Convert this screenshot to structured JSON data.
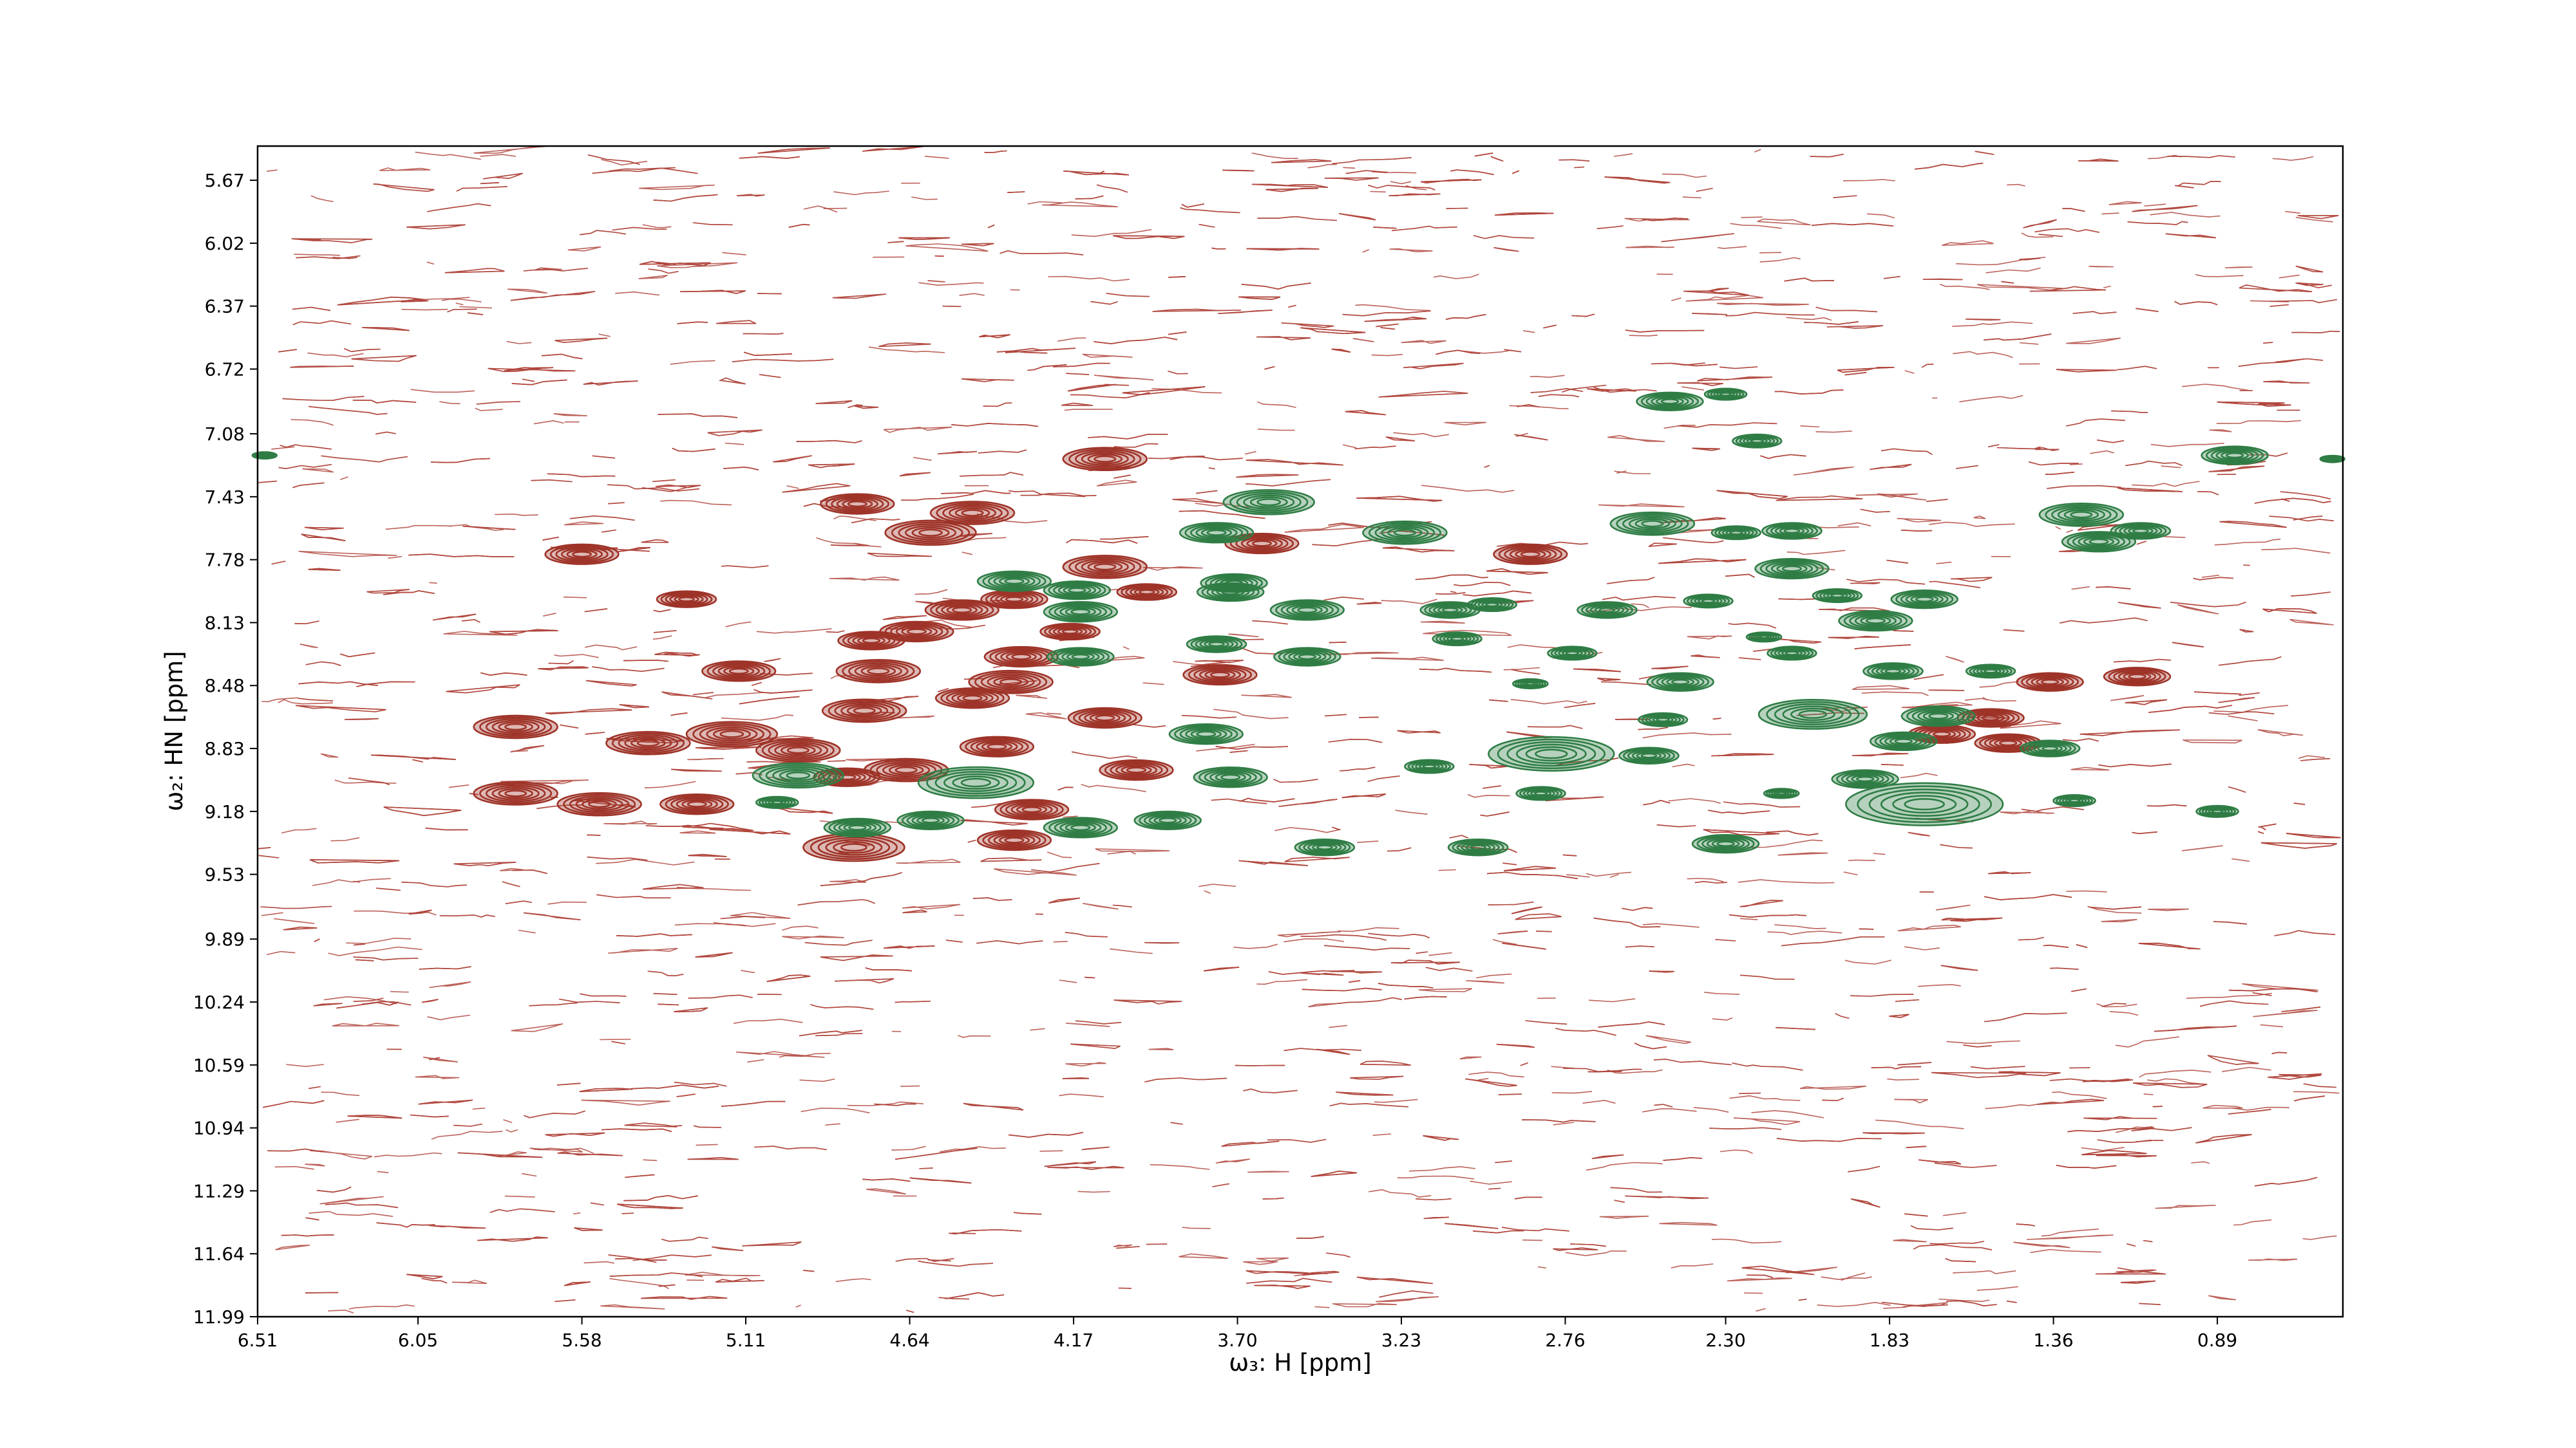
{
  "chart_data": {
    "type": "contour",
    "xlabel": "ω₃: H [ppm]",
    "ylabel": "ω₂: HN [ppm]",
    "xlim": [
      6.51,
      0.53
    ],
    "ylim": [
      5.48,
      11.99
    ],
    "xticks": [
      6.51,
      6.05,
      5.58,
      5.11,
      4.64,
      4.17,
      {
        "value": 3.7,
        "label": "3.70"
      },
      3.23,
      2.76,
      {
        "value": 2.3,
        "label": "2.30"
      },
      1.83,
      1.36,
      0.89
    ],
    "yticks": [
      5.67,
      6.02,
      6.37,
      6.72,
      7.08,
      7.43,
      7.78,
      8.13,
      8.48,
      8.83,
      9.18,
      9.53,
      9.89,
      10.24,
      10.59,
      10.94,
      11.29,
      11.64,
      11.99
    ],
    "noise_color": "#b0473d",
    "series": [
      {
        "color": "#9e3328",
        "x": [
          4.08,
          4.79,
          4.46,
          4.58,
          5.58,
          3.63,
          2.86,
          5.28,
          4.08,
          3.96,
          4.49,
          4.34,
          4.62,
          4.75,
          4.18,
          4.32,
          4.73,
          5.13,
          3.75,
          4.35,
          4.46,
          4.77,
          4.08,
          5.77,
          5.15,
          5.39,
          4.39,
          4.96,
          4.65,
          4.82,
          3.99,
          5.77,
          5.53,
          5.25,
          4.29,
          4.34,
          4.8,
          1.37,
          1.12,
          1.54,
          1.49,
          1.68
        ],
        "y": [
          7.22,
          7.47,
          7.52,
          7.63,
          7.75,
          7.69,
          7.75,
          8.0,
          7.82,
          7.96,
          8.06,
          8.0,
          8.18,
          8.23,
          8.18,
          8.32,
          8.4,
          8.4,
          8.42,
          8.46,
          8.55,
          8.62,
          8.66,
          8.71,
          8.75,
          8.8,
          8.82,
          8.84,
          8.95,
          8.99,
          8.95,
          9.08,
          9.14,
          9.14,
          9.17,
          9.34,
          9.38,
          8.46,
          8.43,
          8.66,
          8.8,
          8.75
        ],
        "sizes": [
          0.24,
          0.21,
          0.24,
          0.26,
          0.21,
          0.21,
          0.21,
          0.17,
          0.24,
          0.17,
          0.21,
          0.19,
          0.21,
          0.19,
          0.17,
          0.21,
          0.24,
          0.21,
          0.21,
          0.24,
          0.21,
          0.24,
          0.21,
          0.24,
          0.26,
          0.24,
          0.21,
          0.24,
          0.24,
          0.19,
          0.21,
          0.24,
          0.24,
          0.21,
          0.21,
          0.21,
          0.29,
          0.19,
          0.19,
          0.19,
          0.19,
          0.19
        ]
      },
      {
        "color": "#2f7d45",
        "x": [
          6.49,
          2.46,
          2.3,
          2.21,
          0.84,
          0.56,
          3.61,
          3.76,
          3.22,
          2.51,
          2.27,
          2.11,
          1.28,
          1.23,
          1.11,
          4.34,
          4.16,
          3.71,
          3.72,
          3.5,
          4.15,
          3.09,
          2.97,
          2.64,
          2.35,
          2.11,
          1.98,
          1.73,
          1.87,
          3.76,
          3.07,
          4.15,
          3.5,
          2.74,
          2.19,
          2.11,
          1.82,
          1.54,
          2.43,
          2.86,
          2.05,
          1.69,
          3.79,
          2.48,
          2.8,
          2.52,
          3.15,
          1.79,
          1.37,
          4.96,
          4.45,
          3.72,
          1.9,
          2.83,
          2.14,
          1.73,
          1.3,
          5.02,
          4.58,
          4.79,
          4.15,
          3.9,
          0.89,
          3.45,
          3.01,
          2.3
        ],
        "y": [
          7.2,
          6.9,
          6.86,
          7.12,
          7.2,
          7.22,
          7.46,
          7.63,
          7.63,
          7.58,
          7.63,
          7.62,
          7.53,
          7.68,
          7.62,
          7.9,
          7.95,
          7.91,
          7.96,
          8.06,
          8.07,
          8.06,
          8.03,
          8.06,
          8.01,
          7.83,
          7.98,
          8.0,
          8.12,
          8.25,
          8.22,
          8.32,
          8.32,
          8.3,
          8.21,
          8.3,
          8.4,
          8.4,
          8.46,
          8.47,
          8.64,
          8.65,
          8.75,
          8.67,
          8.86,
          8.87,
          8.93,
          8.79,
          8.83,
          8.98,
          9.02,
          8.99,
          9.0,
          9.08,
          9.08,
          9.14,
          9.12,
          9.13,
          9.23,
          9.27,
          9.27,
          9.23,
          9.18,
          9.38,
          9.38,
          9.36
        ],
        "sizes": [
          0.07,
          0.19,
          0.12,
          0.14,
          0.19,
          0.07,
          0.26,
          0.21,
          0.24,
          0.24,
          0.14,
          0.17,
          0.24,
          0.21,
          0.17,
          0.21,
          0.19,
          0.19,
          0.19,
          0.21,
          0.21,
          0.17,
          0.14,
          0.17,
          0.14,
          0.21,
          0.14,
          0.19,
          0.21,
          0.17,
          0.14,
          0.19,
          0.19,
          0.14,
          0.1,
          0.14,
          0.17,
          0.14,
          0.19,
          0.1,
          0.31,
          0.21,
          0.21,
          0.14,
          0.36,
          0.17,
          0.14,
          0.19,
          0.17,
          0.26,
          0.33,
          0.21,
          0.19,
          0.14,
          0.1,
          0.45,
          0.12,
          0.12,
          0.19,
          0.19,
          0.21,
          0.19,
          0.12,
          0.17,
          0.17,
          0.19
        ]
      }
    ]
  }
}
